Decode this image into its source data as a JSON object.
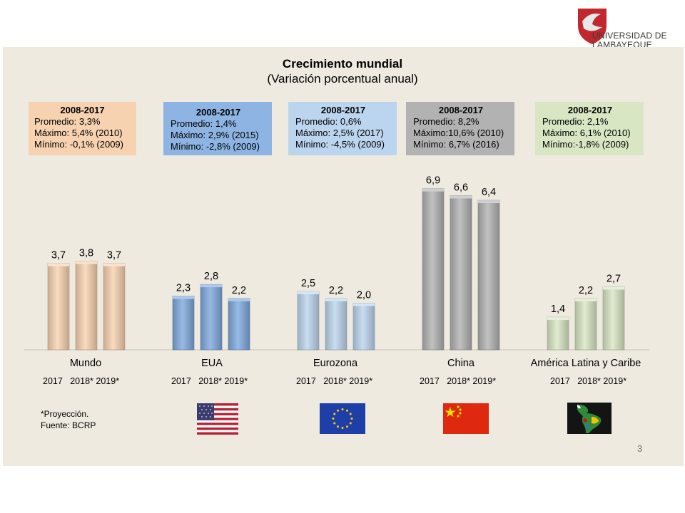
{
  "logo": {
    "text_line1": "UNIVERSIDAD DE",
    "text_line2": "LAMBAYEQUE"
  },
  "title": "Crecimiento mundial",
  "subtitle": "(Variación porcentual anual)",
  "colors": {
    "Mundo": "#f7d2b0",
    "EUA": "#7ea9dd",
    "Eurozona": "#bcd5ee",
    "China": "#b2b2b2",
    "America Latina y Caribe": "#d8e6c3"
  },
  "stat_boxes": [
    {
      "period": "2008-2017",
      "promedio": "Promedio: 3,3%",
      "maximo": "Máximo: 5,4% (2010)",
      "minimo": "Mínimo: -0,1% (2009)"
    },
    {
      "period": "2008-2017",
      "promedio": "Promedio: 1,4%",
      "maximo": "Máximo: 2,9% (2015)",
      "minimo": "Mínimo: -2,8% (2009)"
    },
    {
      "period": "2008-2017",
      "promedio": "Promedio: 0,6%",
      "maximo": "Máximo:  2,5% (2017)",
      "minimo": "Mínimo:  -4,5% (2009)"
    },
    {
      "period": "2008-2017",
      "promedio": "Promedio: 8,2%",
      "maximo": "Máximo:10,6% (2010)",
      "minimo": "Mínimo:   6,7% (2016)"
    },
    {
      "period": "2008-2017",
      "promedio": "Promedio: 2,1%",
      "maximo": "Máximo: 6,1% (2010)",
      "minimo": "Mínimo:-1,8% (2009)"
    }
  ],
  "years_label": "2017   2018*  2019*",
  "notes": {
    "proyeccion": "*Proyección.",
    "fuente": "Fuente: BCRP"
  },
  "page_number": "3",
  "chart_data": {
    "type": "bar",
    "title": "Crecimiento mundial",
    "subtitle": "(Variación porcentual anual)",
    "categories": [
      "Mundo",
      "EUA",
      "Eurozona",
      "China",
      "América Latina y Caribe"
    ],
    "x": [
      "2017",
      "2018*",
      "2019*"
    ],
    "series_by_category": [
      {
        "name": "Mundo",
        "values": [
          3.7,
          3.8,
          3.7
        ],
        "labels": [
          "3,7",
          "3,8",
          "3,7"
        ]
      },
      {
        "name": "EUA",
        "values": [
          2.3,
          2.8,
          2.2
        ],
        "labels": [
          "2,3",
          "2,8",
          "2,2"
        ]
      },
      {
        "name": "Eurozona",
        "values": [
          2.5,
          2.2,
          2.0
        ],
        "labels": [
          "2,5",
          "2,2",
          "2,0"
        ]
      },
      {
        "name": "China",
        "values": [
          6.9,
          6.6,
          6.4
        ],
        "labels": [
          "6,9",
          "6,6",
          "6,4"
        ]
      },
      {
        "name": "América Latina y Caribe",
        "values": [
          1.4,
          2.2,
          2.7
        ],
        "labels": [
          "1,4",
          "2,2",
          "2,7"
        ]
      }
    ],
    "ylim": [
      0,
      7.2
    ],
    "grid": false,
    "legend": "none"
  }
}
